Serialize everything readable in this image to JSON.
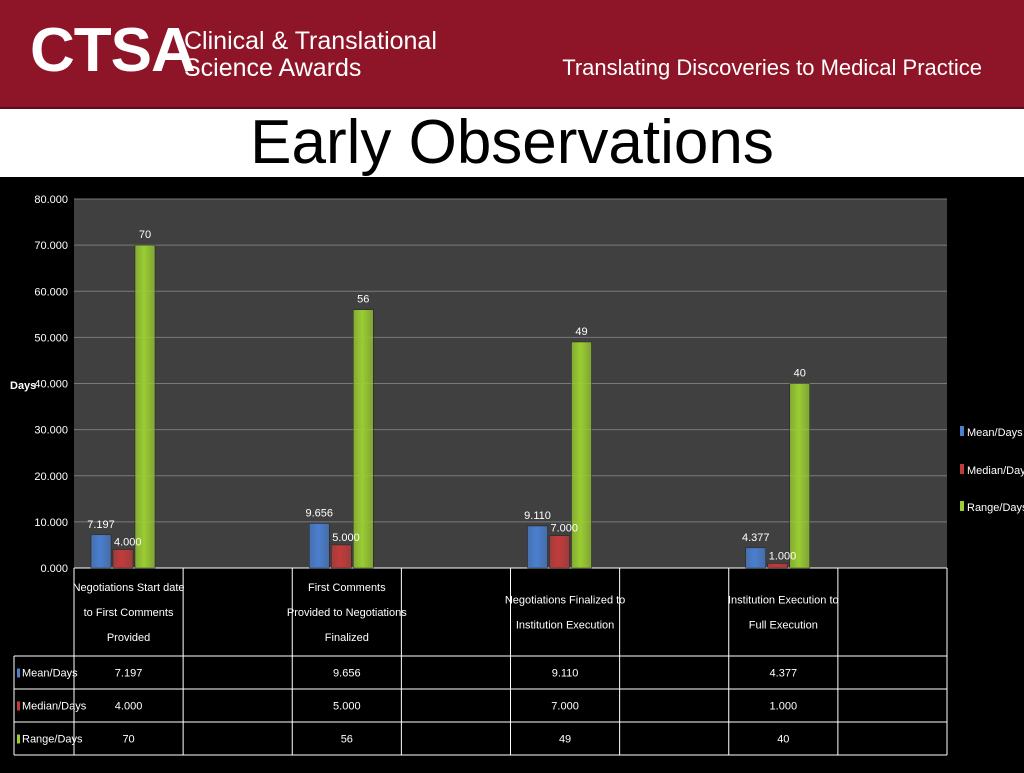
{
  "header": {
    "logo_text": "CTSA",
    "logo_line1": "Clinical & Translational",
    "logo_line2": "Science Awards",
    "tagline": "Translating Discoveries to Medical Practice",
    "background_color": "#8e1528"
  },
  "slide": {
    "title": "Early Observations"
  },
  "chart_data": {
    "type": "bar",
    "title": "",
    "xlabel": "",
    "ylabel": "Days",
    "ylim": [
      0,
      80
    ],
    "ytick_values": [
      0,
      10,
      20,
      30,
      40,
      50,
      60,
      70,
      80
    ],
    "ytick_labels": [
      "0.000",
      "10.000",
      "20.000",
      "30.000",
      "40.000",
      "50.000",
      "60.000",
      "70.000",
      "80.000"
    ],
    "grid": true,
    "legend_position": "right",
    "categories": [
      [
        "Negotiations Start date",
        "to First Comments",
        "Provided"
      ],
      [
        "First Comments",
        "Provided to Negotiations",
        "Finalized"
      ],
      [
        "Negotiations Finalized to",
        "Institution Execution"
      ],
      [
        "Institution Execution to",
        "Full Execution"
      ]
    ],
    "series": [
      {
        "name": "Mean/Days",
        "values": [
          7.197,
          9.656,
          9.11,
          4.377
        ],
        "labels": [
          "7.197",
          "9.656",
          "9.110",
          "4.377"
        ],
        "color": "#4a7fd0"
      },
      {
        "name": "Median/Days",
        "values": [
          4.0,
          5.0,
          7.0,
          1.0
        ],
        "labels": [
          "4.000",
          "5.000",
          "7.000",
          "1.000"
        ],
        "color": "#c23b3b"
      },
      {
        "name": "Range/Days",
        "values": [
          70,
          56,
          49,
          40
        ],
        "labels": [
          "70",
          "56",
          "49",
          "40"
        ],
        "color": "#9acd32"
      }
    ],
    "plot_background": "#404040",
    "table_rows": [
      {
        "name": "Mean/Days",
        "cells": [
          "7.197",
          "9.656",
          "9.110",
          "4.377"
        ]
      },
      {
        "name": "Median/Days",
        "cells": [
          "4.000",
          "5.000",
          "7.000",
          "1.000"
        ]
      },
      {
        "name": "Range/Days",
        "cells": [
          "70",
          "56",
          "49",
          "40"
        ]
      }
    ]
  }
}
